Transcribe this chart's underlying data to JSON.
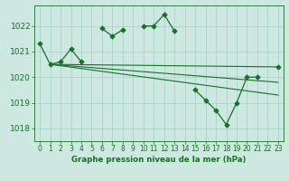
{
  "title": "Graphe pression niveau de la mer (hPa)",
  "bg_color": "#cce8e0",
  "grid_color": "#aad4cc",
  "line_color": "#1a6e2a",
  "marker_color": "#1a6e2a",
  "ylim": [
    1017.5,
    1022.8
  ],
  "xlim": [
    -0.5,
    23.5
  ],
  "yticks": [
    1018,
    1019,
    1020,
    1021,
    1022
  ],
  "xticks": [
    0,
    1,
    2,
    3,
    4,
    5,
    6,
    7,
    8,
    9,
    10,
    11,
    12,
    13,
    14,
    15,
    16,
    17,
    18,
    19,
    20,
    21,
    22,
    23
  ],
  "xtick_labels": [
    "0",
    "1",
    "2",
    "3",
    "4",
    "5",
    "6",
    "7",
    "8",
    "9",
    "10",
    "11",
    "12",
    "13",
    "14",
    "15",
    "16",
    "17",
    "18",
    "19",
    "20",
    "21",
    "22",
    "23"
  ],
  "main_series": {
    "segments": [
      {
        "x": [
          0,
          1,
          2,
          3,
          4
        ],
        "y": [
          1021.3,
          1020.5,
          1020.6,
          1021.1,
          1020.6
        ]
      },
      {
        "x": [
          6,
          7,
          8
        ],
        "y": [
          1021.9,
          1021.6,
          1021.85
        ]
      },
      {
        "x": [
          10,
          11,
          12,
          13
        ],
        "y": [
          1022.0,
          1022.0,
          1022.45,
          1021.8
        ]
      },
      {
        "x": [
          15,
          16,
          17,
          18,
          19,
          20,
          21
        ],
        "y": [
          1019.5,
          1019.1,
          1018.7,
          1018.15,
          1019.0,
          1020.0,
          1020.0
        ]
      },
      {
        "x": [
          23
        ],
        "y": [
          1020.4
        ]
      }
    ]
  },
  "trend_lines": [
    {
      "x": [
        1,
        23
      ],
      "y": [
        1020.5,
        1020.4
      ]
    },
    {
      "x": [
        1,
        23
      ],
      "y": [
        1020.5,
        1019.8
      ]
    },
    {
      "x": [
        1,
        23
      ],
      "y": [
        1020.5,
        1019.3
      ]
    }
  ]
}
